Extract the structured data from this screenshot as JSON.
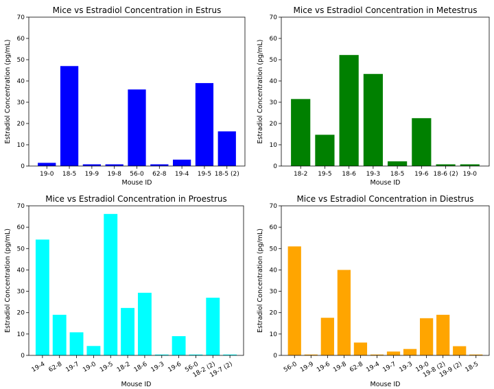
{
  "chart_data": [
    {
      "type": "bar",
      "title": "Mice vs Estradiol Concentration in Estrus",
      "xlabel": "Mouse ID",
      "ylabel": "Estradiol Concentration (pg/mL)",
      "ylim": [
        0,
        70
      ],
      "yticks": [
        0,
        10,
        20,
        30,
        40,
        50,
        60,
        70
      ],
      "color": "#0000ff",
      "rotate_labels": false,
      "grid": false,
      "categories": [
        "19-0",
        "18-5",
        "19-9",
        "19-8",
        "56-0",
        "62-8",
        "19-4",
        "19-5",
        "18-5 (2)"
      ],
      "values": [
        1.5,
        47,
        0.8,
        0.8,
        36,
        0.8,
        3,
        39,
        16.3
      ]
    },
    {
      "type": "bar",
      "title": "Mice vs Estradiol Concentration in Metestrus",
      "xlabel": "Mouse ID",
      "ylabel": "Estradiol Concentration (pg/mL)",
      "ylim": [
        0,
        70
      ],
      "yticks": [
        0,
        10,
        20,
        30,
        40,
        50,
        60,
        70
      ],
      "color": "#008000",
      "rotate_labels": false,
      "grid": false,
      "categories": [
        "18-2",
        "19-5",
        "18-6",
        "19-3",
        "18-5",
        "19-6",
        "18-6 (2)",
        "19-0"
      ],
      "values": [
        31.5,
        14.7,
        52.2,
        43.3,
        2.2,
        22.5,
        0.8,
        0.8
      ]
    },
    {
      "type": "bar",
      "title": "Mice vs Estradiol Concentration in Proestrus",
      "xlabel": "Mouse ID",
      "ylabel": "Estradiol Concentration (pg/mL)",
      "ylim": [
        0,
        70
      ],
      "yticks": [
        0,
        10,
        20,
        30,
        40,
        50,
        60,
        70
      ],
      "color": "#00ffff",
      "rotate_labels": true,
      "grid": false,
      "categories": [
        "19-4",
        "62-8",
        "19-7",
        "19-0",
        "19-5",
        "18-2",
        "18-6",
        "19-3",
        "19-6",
        "56-0",
        "18-2 (2)",
        "19-7 (2)"
      ],
      "values": [
        54.2,
        19,
        10.8,
        4.4,
        66.2,
        22.2,
        29.3,
        0.4,
        9,
        0.4,
        27,
        0.4
      ]
    },
    {
      "type": "bar",
      "title": "Mice vs Estradiol Concentration in Diestrus",
      "xlabel": "Mouse ID",
      "ylabel": "Estradiol Concentration (pg/mL)",
      "ylim": [
        0,
        70
      ],
      "yticks": [
        0,
        10,
        20,
        30,
        40,
        50,
        60,
        70
      ],
      "color": "#ffa500",
      "rotate_labels": true,
      "grid": false,
      "categories": [
        "56-0",
        "19-9",
        "19-6",
        "19-8",
        "62-8",
        "19-4",
        "19-7",
        "19-3",
        "19-0",
        "19-8 (2)",
        "19-9 (2)",
        "18-5"
      ],
      "values": [
        51,
        0.4,
        17.6,
        40,
        6,
        0.4,
        1.8,
        3,
        17.4,
        19,
        4.3,
        0.4
      ]
    }
  ]
}
